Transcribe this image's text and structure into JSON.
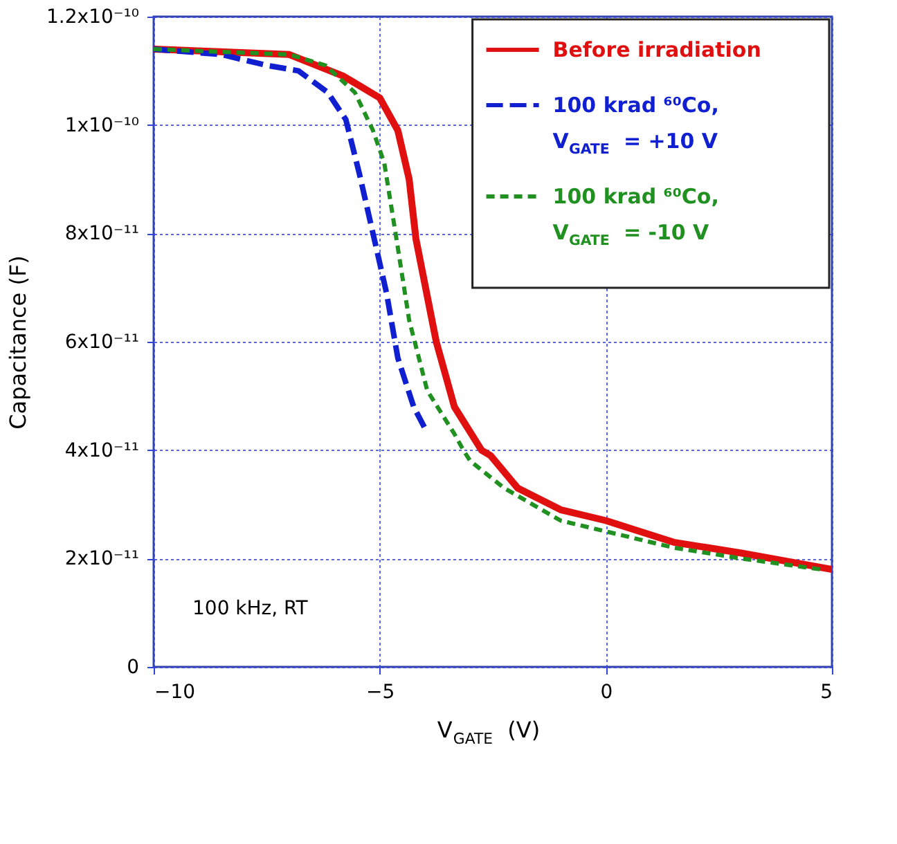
{
  "chart_data": {
    "type": "line",
    "xlabel": "V$_{GATE}$ (V)",
    "ylabel": "Capacitance (F)",
    "xlim": [
      -10,
      5
    ],
    "xticks": [
      -10,
      -5,
      0,
      5
    ],
    "ylim": [
      0,
      1.2e-10
    ],
    "yticks": [
      0,
      {
        "value": 2e-11,
        "label": "2x10⁻¹¹"
      },
      {
        "value": 4e-11,
        "label": "4x10⁻¹¹"
      },
      {
        "value": 6e-11,
        "label": "6x10⁻¹¹"
      },
      {
        "value": 8e-11,
        "label": "8x10⁻¹¹"
      },
      {
        "value": 1e-10,
        "label": "1x10⁻¹⁰"
      },
      {
        "value": 1.2e-10,
        "label": "1.2x10⁻¹⁰"
      }
    ],
    "grid": true,
    "legend": "top right",
    "annotations": [
      "100 kHz, RT"
    ],
    "series": [
      {
        "name": "Before irradiation",
        "color": "#e01010",
        "line_style": "solid",
        "x": [
          -10,
          -7.0,
          -5.8,
          -5.0,
          -4.6,
          -4.35,
          -4.2,
          -3.75,
          -3.35,
          -2.75,
          -2.55,
          -1.95,
          -1.0,
          0,
          1.5,
          3.0,
          5.0
        ],
        "values": [
          1.14e-10,
          1.13e-10,
          1.09e-10,
          1.05e-10,
          9.9e-11,
          9e-11,
          7.9e-11,
          6e-11,
          4.8e-11,
          4e-11,
          3.9e-11,
          3.3e-11,
          2.9e-11,
          2.7e-11,
          2.3e-11,
          2.1e-11,
          1.8e-11
        ]
      },
      {
        "name": "100 krad ⁶⁰Co, V$_{GATE}$ = +10 V",
        "color": "#1020d0",
        "line_style": "dashed",
        "x": [
          -10,
          -8.5,
          -7.5,
          -6.8,
          -6.15,
          -5.75,
          -5.45,
          -5.15,
          -4.85,
          -4.6,
          -4.25,
          -4.0
        ],
        "values": [
          1.14e-10,
          1.13e-10,
          1.11e-10,
          1.1e-10,
          1.06e-10,
          1.01e-10,
          9.1e-11,
          8e-11,
          6.9e-11,
          5.7e-11,
          4.8e-11,
          4.4e-11
        ]
      },
      {
        "name": "100 krad ⁶⁰Co, V$_{GATE}$ = -10 V",
        "color": "#209020",
        "line_style": "dotted",
        "x": [
          -10,
          -7.0,
          -6.2,
          -5.55,
          -5.15,
          -4.9,
          -4.65,
          -4.35,
          -3.95,
          -3.35,
          -3.15,
          -3.0,
          -2.25,
          -1.0,
          0,
          1.5,
          3.0,
          4.75
        ],
        "values": [
          1.14e-10,
          1.13e-10,
          1.11e-10,
          1.06e-10,
          9.9e-11,
          9.3e-11,
          8e-11,
          6.4e-11,
          5.1e-11,
          4.3e-11,
          4e-11,
          3.8e-11,
          3.3e-11,
          2.7e-11,
          2.5e-11,
          2.2e-11,
          2e-11,
          1.8e-11
        ]
      }
    ]
  }
}
